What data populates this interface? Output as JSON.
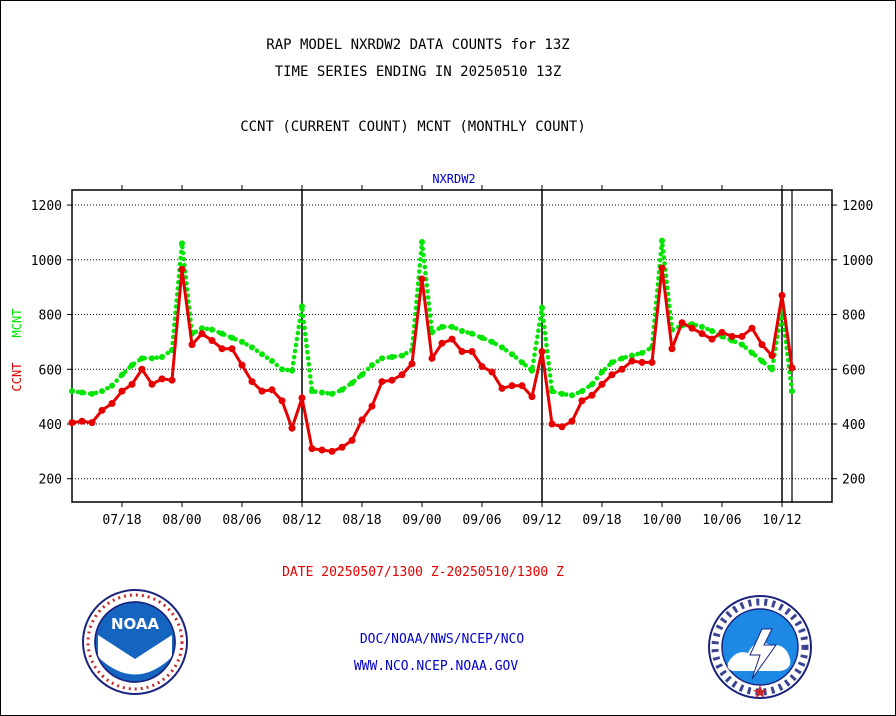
{
  "header": {
    "line1": "RAP MODEL NXRDW2 DATA COUNTS for 13Z",
    "line2": "TIME SERIES ENDING IN 20250510 13Z",
    "line3": "CCNT (CURRENT COUNT) MCNT (MONTHLY COUNT)"
  },
  "footer": {
    "date_range": "DATE 20250507/1300 Z-20250510/1300 Z",
    "org": "DOC/NOAA/NWS/NCEP/NCO",
    "website": "WWW.NCO.NCEP.NOAA.GOV"
  },
  "logos": {
    "noaa_text": "NOAA",
    "nws_text": "NATIONAL WEATHER SERVICE"
  },
  "colors": {
    "ccnt": "#e60000",
    "mcnt": "#00e600",
    "subtitle": "#0000cc",
    "grid": "#000000"
  },
  "chart_data": {
    "type": "line",
    "title": "NXRDW2",
    "ylabel_ccnt": "CCNT",
    "ylabel_mcnt": "MCNT",
    "ylim": [
      115,
      1255
    ],
    "yticks": [
      200,
      400,
      600,
      800,
      1000,
      1200
    ],
    "xticks": [
      "07/18",
      "08/00",
      "08/06",
      "08/12",
      "08/18",
      "09/00",
      "09/06",
      "09/12",
      "09/18",
      "10/00",
      "10/06",
      "10/12"
    ],
    "xtick_hours": [
      -102,
      -96,
      -90,
      -84,
      -78,
      -72,
      -66,
      -60,
      -54,
      -48,
      -42,
      -36
    ],
    "xlim_hours": [
      -107,
      -31
    ],
    "day_boundaries_hours": [
      -84,
      -60,
      -36
    ],
    "grid": true,
    "series": [
      {
        "name": "CCNT",
        "x": [
          -107,
          -106,
          -105,
          -104,
          -103,
          -102,
          -101,
          -100,
          -99,
          -98,
          -97,
          -96,
          -95,
          -94,
          -93,
          -92,
          -91,
          -90,
          -89,
          -88,
          -87,
          -86,
          -85,
          -84,
          -83,
          -82,
          -81,
          -80,
          -79,
          -78,
          -77,
          -76,
          -75,
          -74,
          -73,
          -72,
          -71,
          -70,
          -69,
          -68,
          -67,
          -66,
          -65,
          -64,
          -63,
          -62,
          -61,
          -60,
          -59,
          -58,
          -57,
          -56,
          -55,
          -54,
          -53,
          -52,
          -51,
          -50,
          -49,
          -48,
          -47,
          -46,
          -45,
          -44,
          -43,
          -42,
          -41,
          -40,
          -39,
          -38,
          -37,
          -36,
          -35
        ],
        "values": [
          405,
          410,
          405,
          450,
          475,
          520,
          545,
          600,
          545,
          565,
          560,
          965,
          690,
          730,
          705,
          675,
          675,
          615,
          555,
          520,
          525,
          485,
          385,
          495,
          310,
          305,
          300,
          315,
          340,
          415,
          465,
          555,
          560,
          580,
          620,
          930,
          640,
          695,
          710,
          665,
          665,
          610,
          590,
          530,
          540,
          540,
          500,
          665,
          400,
          390,
          410,
          485,
          505,
          545,
          580,
          600,
          630,
          625,
          625,
          970,
          675,
          770,
          750,
          730,
          710,
          735,
          720,
          720,
          750,
          690,
          650,
          870,
          605
        ]
      },
      {
        "name": "MCNT",
        "x": [
          -107,
          -106,
          -105,
          -104,
          -103,
          -102,
          -101,
          -100,
          -99,
          -98,
          -97,
          -96,
          -95,
          -94,
          -93,
          -92,
          -91,
          -90,
          -89,
          -88,
          -87,
          -86,
          -85,
          -84,
          -83,
          -82,
          -81,
          -80,
          -79,
          -78,
          -77,
          -76,
          -75,
          -74,
          -73,
          -72,
          -71,
          -70,
          -69,
          -68,
          -67,
          -66,
          -65,
          -64,
          -63,
          -62,
          -61,
          -60,
          -59,
          -58,
          -57,
          -56,
          -55,
          -54,
          -53,
          -52,
          -51,
          -50,
          -49,
          -48,
          -47,
          -46,
          -45,
          -44,
          -43,
          -42,
          -41,
          -40,
          -39,
          -38,
          -37,
          -36,
          -35
        ],
        "values": [
          520,
          515,
          510,
          520,
          540,
          580,
          615,
          640,
          640,
          645,
          670,
          1060,
          730,
          750,
          745,
          730,
          715,
          700,
          680,
          655,
          630,
          600,
          595,
          830,
          520,
          515,
          510,
          525,
          550,
          580,
          615,
          640,
          645,
          650,
          670,
          1065,
          735,
          755,
          755,
          740,
          730,
          715,
          700,
          680,
          655,
          625,
          595,
          825,
          520,
          510,
          505,
          520,
          545,
          590,
          625,
          640,
          650,
          660,
          680,
          1070,
          745,
          760,
          765,
          755,
          740,
          720,
          705,
          690,
          660,
          630,
          600,
          820,
          520
        ]
      }
    ]
  }
}
